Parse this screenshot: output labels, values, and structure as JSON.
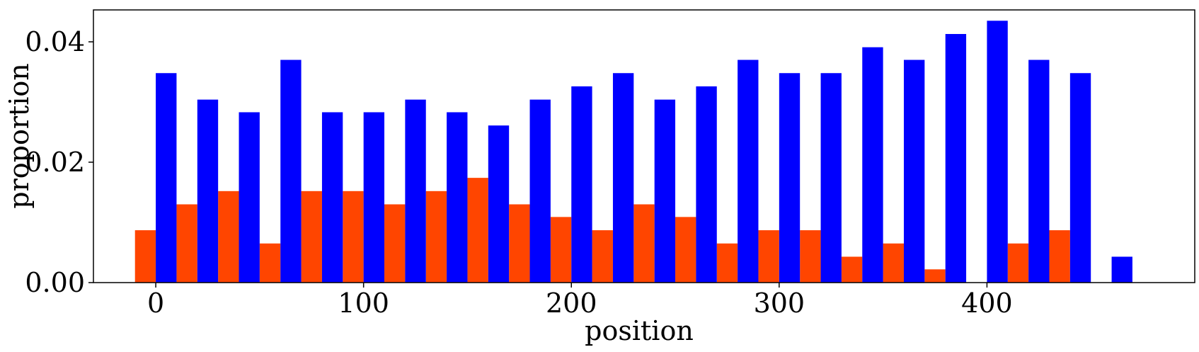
{
  "chart_data": {
    "type": "bar",
    "xlabel": "position",
    "ylabel": "proportion",
    "xlim": [
      -30,
      500
    ],
    "ylim": [
      0,
      0.0453
    ],
    "bin_width": 20,
    "x_ticks": [
      0,
      100,
      200,
      300,
      400
    ],
    "x_tick_labels": [
      "0",
      "100",
      "200",
      "300",
      "400"
    ],
    "y_ticks": [
      0,
      0.02,
      0.04
    ],
    "y_tick_labels": [
      "0.00",
      "0.02",
      "0.04"
    ],
    "legend": "none",
    "grid": false,
    "series": [
      {
        "color": "#ff4500",
        "x": [
          0,
          20,
          40,
          60,
          80,
          100,
          120,
          140,
          160,
          180,
          200,
          220,
          240,
          260,
          280,
          300,
          320,
          340,
          360,
          380,
          400,
          420,
          440,
          460
        ],
        "values": [
          0.0087,
          0.013,
          0.0152,
          0.0065,
          0.0152,
          0.0152,
          0.013,
          0.0152,
          0.0174,
          0.013,
          0.0109,
          0.0087,
          0.013,
          0.0109,
          0.0065,
          0.0087,
          0.0087,
          0.0043,
          0.0065,
          0.0022,
          0.0,
          0.0065,
          0.0087,
          0.0
        ]
      },
      {
        "color": "#0000ff",
        "x": [
          0,
          20,
          40,
          60,
          80,
          100,
          120,
          140,
          160,
          180,
          200,
          220,
          240,
          260,
          280,
          300,
          320,
          340,
          360,
          380,
          400,
          420,
          440,
          460
        ],
        "values": [
          0.0348,
          0.0304,
          0.0283,
          0.037,
          0.0283,
          0.0283,
          0.0304,
          0.0283,
          0.0261,
          0.0304,
          0.0326,
          0.0348,
          0.0304,
          0.0326,
          0.037,
          0.0348,
          0.0348,
          0.0391,
          0.037,
          0.0413,
          0.0435,
          0.037,
          0.0348,
          0.0043
        ]
      }
    ]
  }
}
